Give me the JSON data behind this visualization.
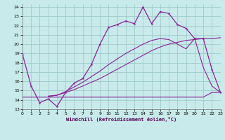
{
  "xlabel": "Windchill (Refroidissement éolien,°C)",
  "xlim": [
    0,
    23
  ],
  "ylim": [
    13,
    24.3
  ],
  "xticks": [
    0,
    1,
    2,
    3,
    4,
    5,
    6,
    7,
    8,
    9,
    10,
    11,
    12,
    13,
    14,
    15,
    16,
    17,
    18,
    19,
    20,
    21,
    22,
    23
  ],
  "yticks": [
    13,
    14,
    15,
    16,
    17,
    18,
    19,
    20,
    21,
    22,
    23,
    24
  ],
  "background_color": "#c8eaea",
  "grid_color": "#a0cccc",
  "line_color": "#882299",
  "line1_x": [
    0,
    1,
    2,
    3,
    4,
    5,
    6,
    7,
    8,
    9,
    10,
    11,
    12,
    13,
    14,
    15,
    16,
    17,
    18,
    19,
    20,
    21,
    22,
    23
  ],
  "line1_y": [
    18.9,
    15.5,
    13.7,
    14.1,
    13.3,
    14.8,
    15.8,
    16.3,
    17.8,
    20.0,
    21.8,
    22.1,
    22.5,
    22.2,
    24.0,
    22.2,
    23.5,
    23.3,
    22.1,
    21.7,
    20.6,
    20.6,
    17.3,
    14.8
  ],
  "line2_x": [
    0,
    1,
    2,
    3,
    4,
    5,
    6,
    7,
    8,
    9,
    10,
    11,
    12,
    13,
    14,
    15,
    16,
    17,
    18,
    19,
    20,
    21,
    22,
    23
  ],
  "line2_y": [
    14.3,
    14.3,
    14.3,
    14.3,
    14.3,
    14.3,
    14.3,
    14.3,
    14.3,
    14.3,
    14.3,
    14.3,
    14.3,
    14.3,
    14.3,
    14.3,
    14.3,
    14.3,
    14.3,
    14.3,
    14.3,
    14.3,
    14.8,
    14.8
  ],
  "line3_x": [
    3,
    4,
    5,
    6,
    7,
    8,
    9,
    10,
    11,
    12,
    13,
    14,
    15,
    16,
    17,
    18,
    19,
    20,
    21,
    22,
    23
  ],
  "line3_y": [
    14.4,
    14.5,
    14.8,
    15.1,
    15.5,
    15.9,
    16.3,
    16.8,
    17.3,
    17.8,
    18.3,
    18.8,
    19.3,
    19.7,
    20.0,
    20.2,
    20.4,
    20.5,
    20.6,
    20.6,
    20.7
  ],
  "line4_x": [
    3,
    4,
    5,
    6,
    7,
    8,
    9,
    10,
    11,
    12,
    13,
    14,
    15,
    16,
    17,
    18,
    19,
    20,
    21,
    22,
    23
  ],
  "line4_y": [
    14.4,
    14.5,
    14.9,
    15.4,
    15.9,
    16.5,
    17.1,
    17.8,
    18.4,
    19.0,
    19.5,
    20.0,
    20.4,
    20.6,
    20.5,
    20.0,
    19.5,
    20.6,
    17.5,
    15.5,
    14.8
  ]
}
